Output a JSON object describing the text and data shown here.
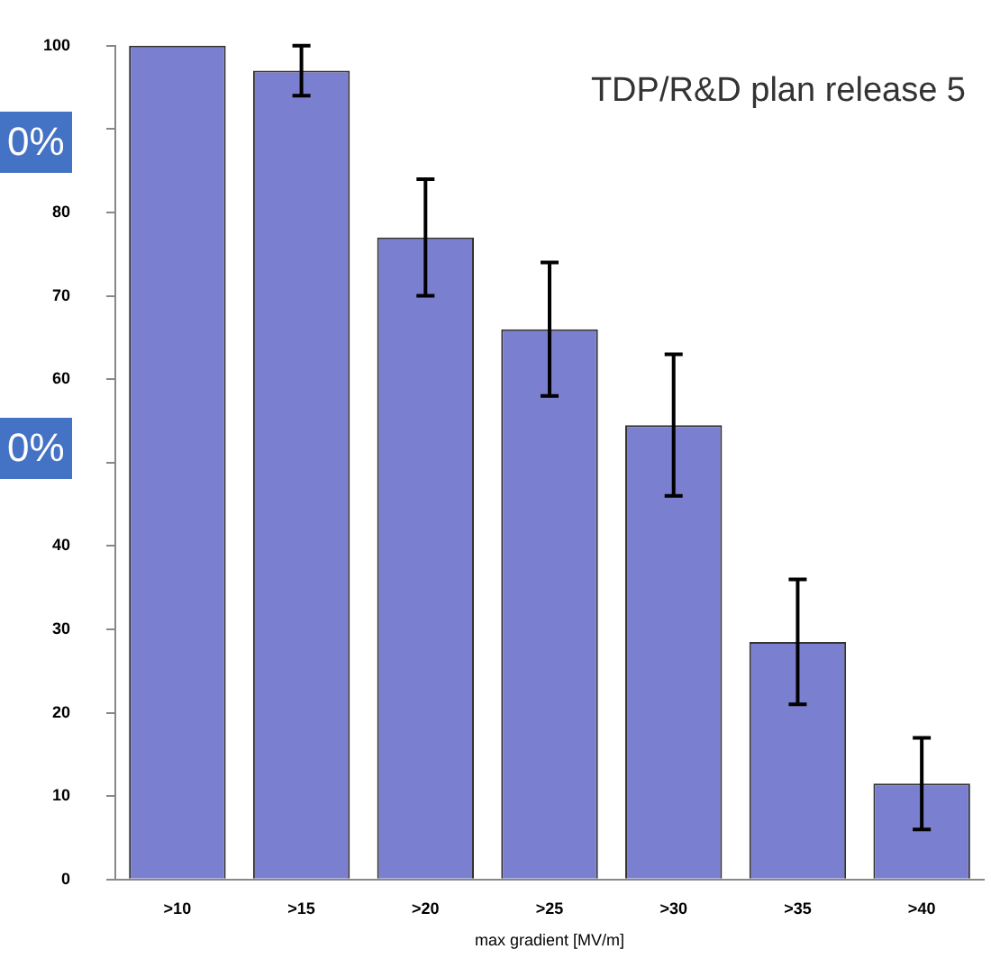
{
  "chart_data": {
    "type": "bar",
    "xlabel": "max gradient [MV/m]",
    "categories": [
      ">10",
      ">15",
      ">20",
      ">25",
      ">30",
      ">35",
      ">40"
    ],
    "values": [
      100,
      97,
      77,
      66,
      54.5,
      28.5,
      11.5
    ],
    "errors": [
      null,
      [
        94,
        100
      ],
      [
        70,
        84
      ],
      [
        58,
        74
      ],
      [
        46,
        63
      ],
      [
        21,
        36
      ],
      [
        6,
        17
      ]
    ],
    "color": "#7b7fd0",
    "ylim": [
      0,
      100
    ],
    "yticks": [
      0,
      10,
      20,
      30,
      40,
      {
        "value": 50,
        "label": null
      },
      60,
      70,
      80,
      {
        "value": 90,
        "label": null
      },
      100
    ],
    "annotations": [
      "TDP/R&D plan release 5",
      "0%",
      "0%"
    ]
  }
}
